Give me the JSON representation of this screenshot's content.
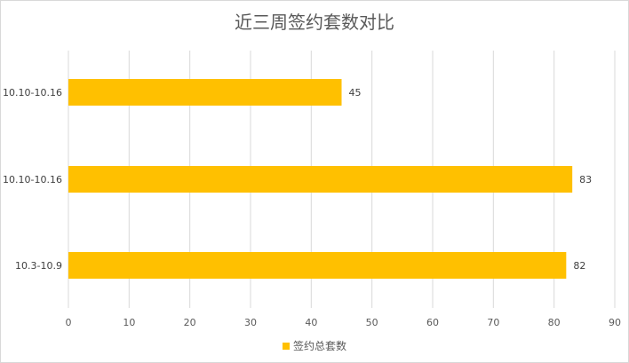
{
  "chart_data": {
    "type": "bar",
    "orientation": "horizontal",
    "title": "近三周签约套数对比",
    "categories": [
      "10.10-10.16",
      "10.10-10.16",
      "10.3-10.9"
    ],
    "series": [
      {
        "name": "签约总套数",
        "values": [
          45,
          83,
          82
        ],
        "color": "#ffc000"
      }
    ],
    "xlim": [
      0,
      90
    ],
    "xticks": [
      "0",
      "10",
      "20",
      "30",
      "40",
      "50",
      "60",
      "70",
      "80",
      "90"
    ],
    "grid": true,
    "legend_position": "bottom",
    "data_labels": true
  }
}
